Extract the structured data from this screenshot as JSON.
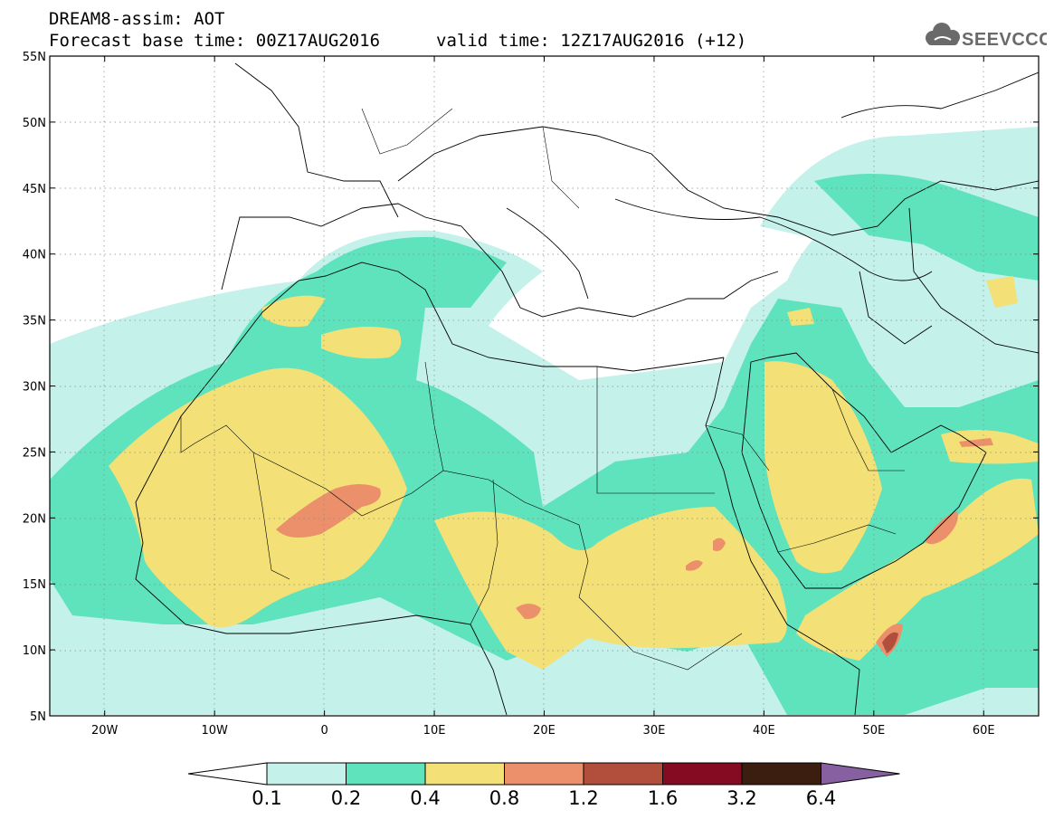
{
  "title": {
    "line1": "DREAM8-assim: AOT",
    "base": "Forecast base time: 00Z17AUG2016",
    "valid": "valid time: 12Z17AUG2016 (+12)"
  },
  "logo": {
    "text": "SEEVCCC",
    "icon": "cloud-icon",
    "color": "#6a6a6a"
  },
  "map": {
    "lat_labels": [
      "55N",
      "50N",
      "45N",
      "40N",
      "35N",
      "30N",
      "25N",
      "20N",
      "15N",
      "10N",
      "5N"
    ],
    "lon_labels": [
      "20W",
      "10W",
      "0",
      "10E",
      "20E",
      "30E",
      "40E",
      "50E",
      "60E"
    ],
    "lat_range": [
      5,
      55
    ],
    "lon_range": [
      -25,
      65
    ],
    "grid": "dotted"
  },
  "colorbar": {
    "labels": [
      "0.1",
      "0.2",
      "0.4",
      "0.8",
      "1.2",
      "1.6",
      "3.2",
      "6.4"
    ],
    "colors": [
      "#ffffff",
      "#c4f1ea",
      "#5ee3bd",
      "#f3e076",
      "#eb906a",
      "#b24f3c",
      "#850b22",
      "#3b1e10",
      "#8660a0"
    ]
  }
}
